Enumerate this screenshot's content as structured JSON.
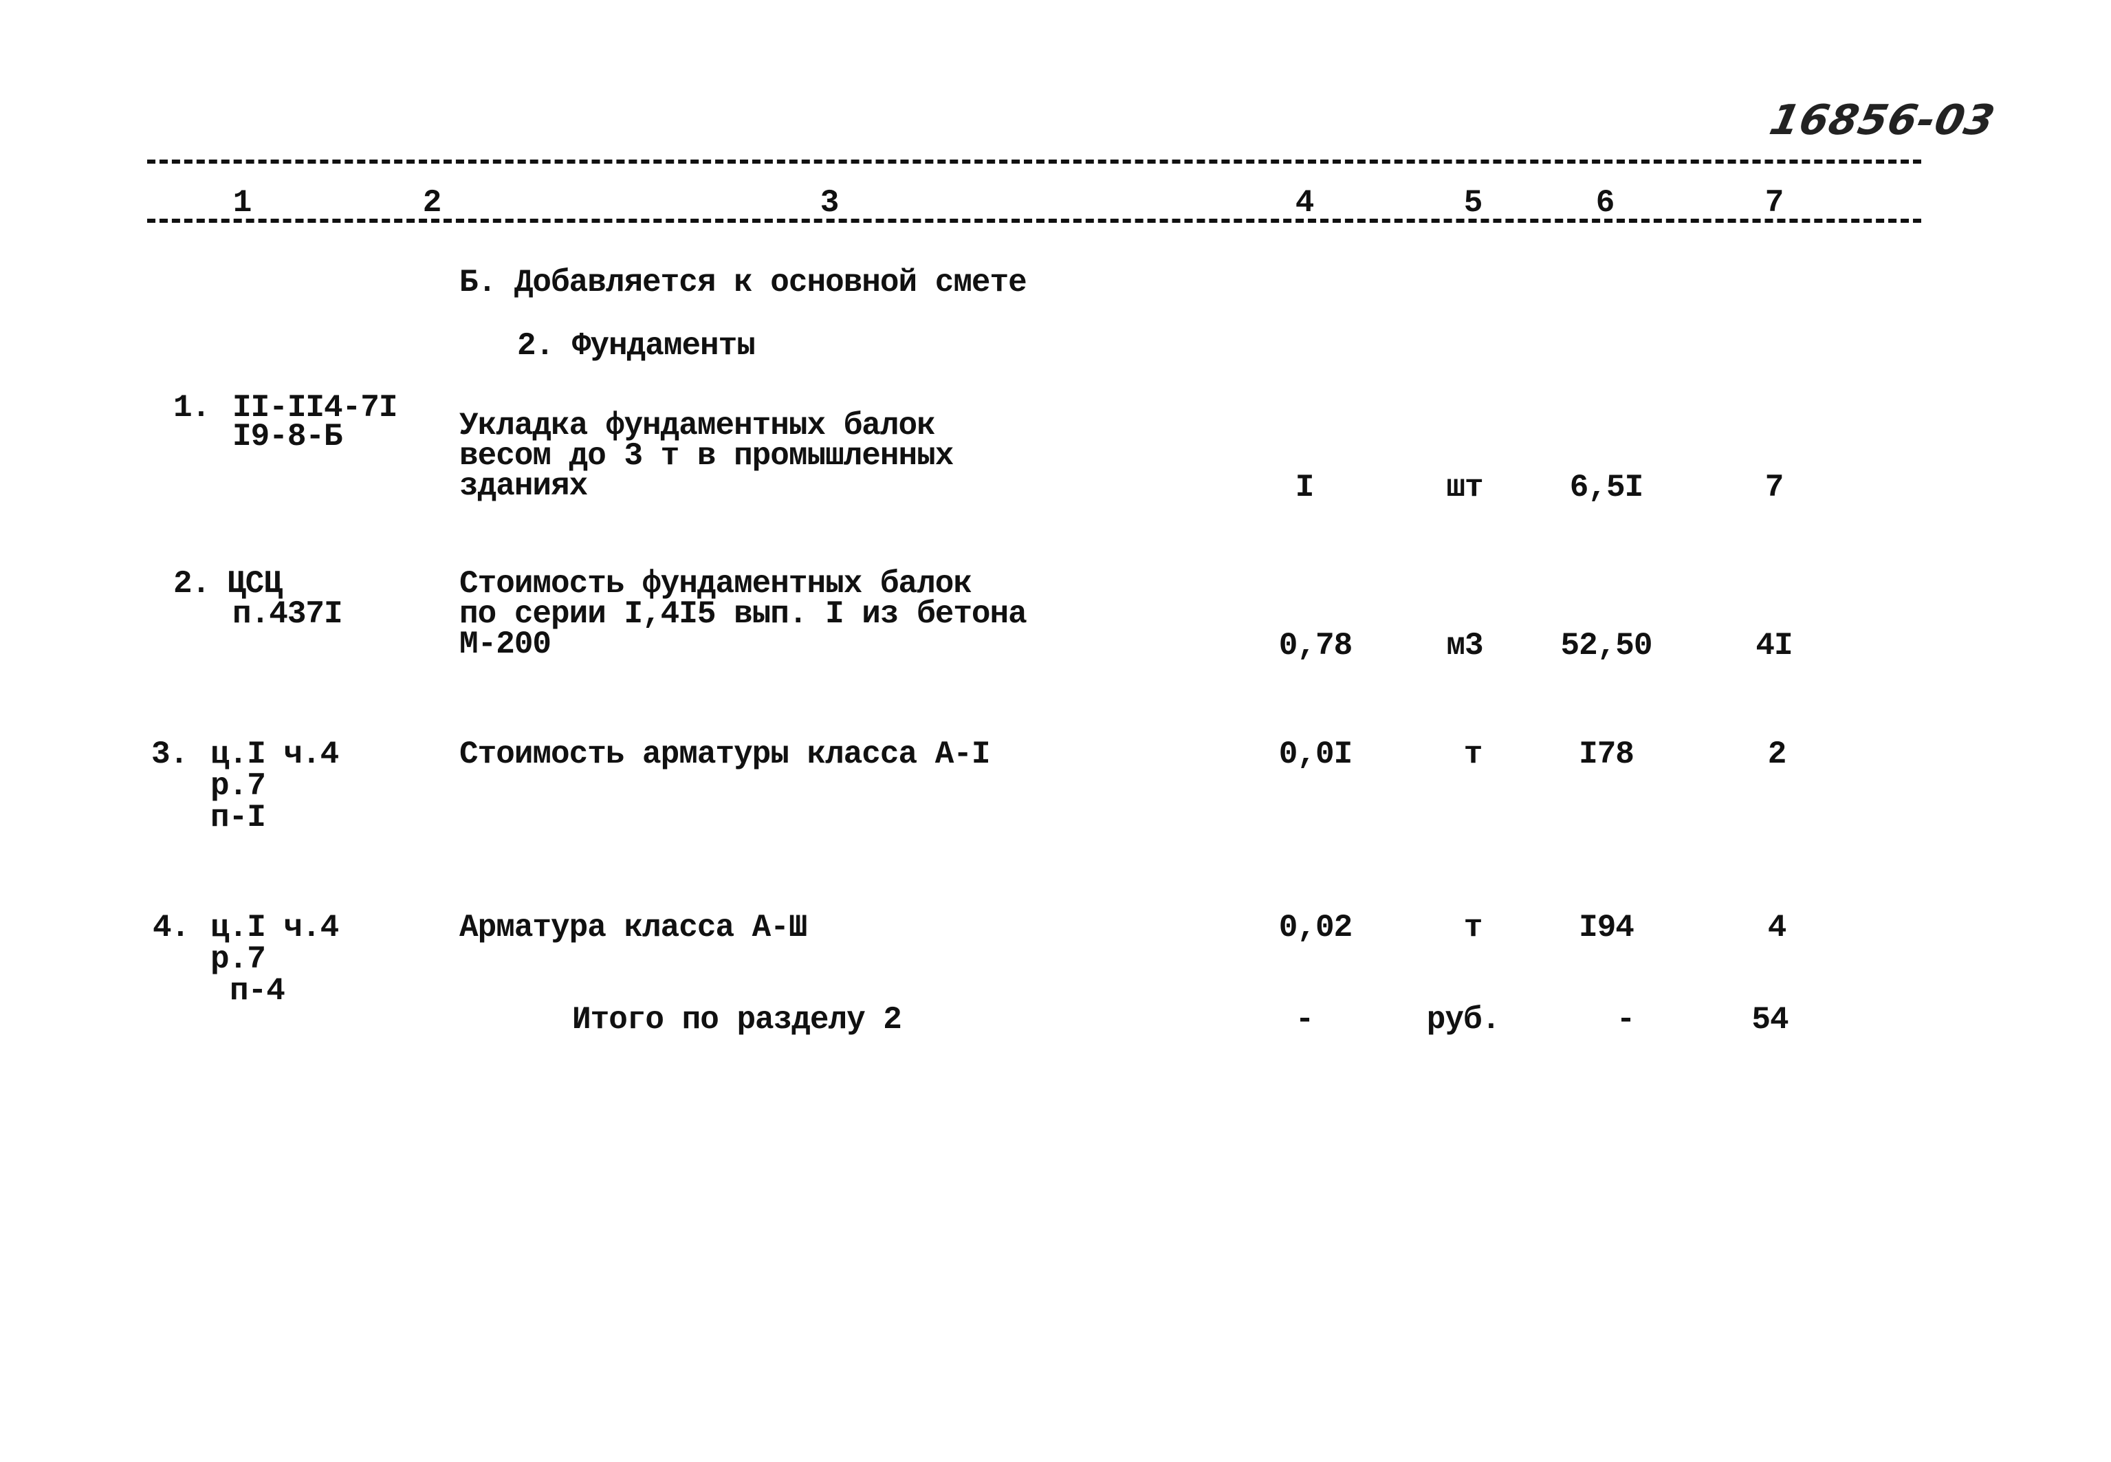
{
  "doc_number": "16856-03",
  "columns": [
    "1",
    "2",
    "3",
    "4",
    "5",
    "6",
    "7"
  ],
  "section_title": "Б. Добавляется к основной смете",
  "subsection_title": "2. Фундаменты",
  "rows": [
    {
      "num": "1.",
      "code": [
        "II-II4-7I",
        "I9-8-Б"
      ],
      "desc": [
        "Укладка фундаментных балок",
        "весом до 3 т в промышленных",
        "зданиях"
      ],
      "qty": "I",
      "unit": "шт",
      "price": "6,5I",
      "total": "7"
    },
    {
      "num": "2.",
      "code": [
        "ЦСЦ",
        "п.437I"
      ],
      "desc": [
        "Стоимость фундаментных балок",
        "по серии I,4I5 вып. I из бетона",
        "М-200"
      ],
      "qty": "0,78",
      "unit": "м3",
      "price": "52,50",
      "total": "4I"
    },
    {
      "num": "3.",
      "code": [
        "ц.I ч.4",
        "р.7",
        "п-I"
      ],
      "desc": [
        "Стоимость арматуры класса А-I"
      ],
      "qty": "0,0I",
      "unit": "т",
      "price": "I78",
      "total": "2"
    },
    {
      "num": "4.",
      "code": [
        "ц.I ч.4",
        "р.7",
        "п-4"
      ],
      "desc": [
        "Арматура класса А-Ш"
      ],
      "qty": "0,02",
      "unit": "т",
      "price": "I94",
      "total": "4"
    }
  ],
  "total_row": {
    "label": "Итого по разделу 2",
    "qty": "-",
    "unit": "руб.",
    "price": "-",
    "total": "54"
  }
}
